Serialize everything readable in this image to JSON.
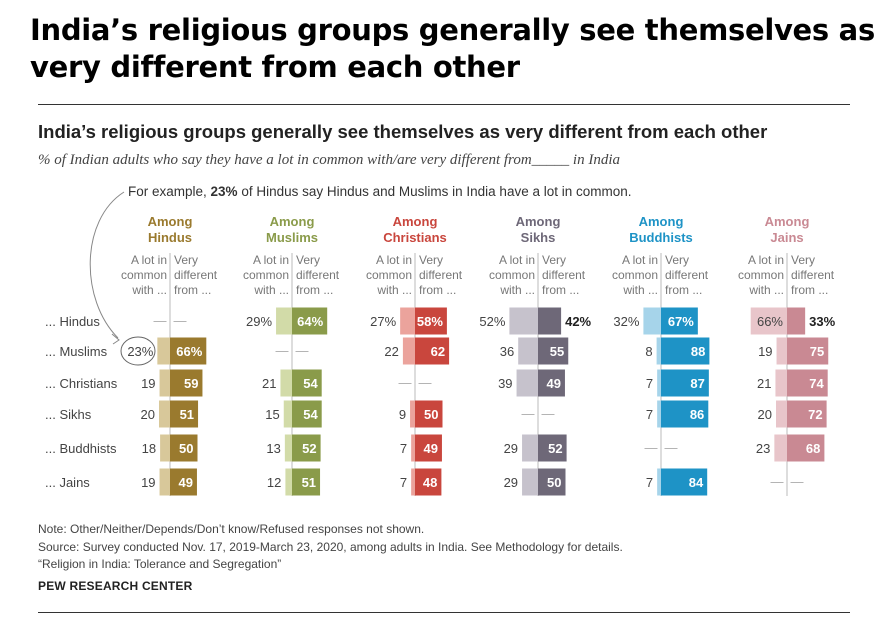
{
  "page_title": "India’s religious groups generally see themselves as very different from each other",
  "chart_title": "India’s religious groups generally see themselves as very different from each other",
  "subtitle": "% of Indian adults who say they have a lot in common with/are very different from_____ in India",
  "example": {
    "before": "For example, ",
    "highlight": "23%",
    "after": " of Hindus say Hindus and Muslims in India have a lot in common."
  },
  "notes": [
    "Note: Other/Neither/Depends/Don’t know/Refused responses not shown.",
    "Source: Survey conducted Nov. 17, 2019-March 23, 2020, among adults in India. See Methodology for details.",
    "“Religion in India: Tolerance and Segregation”"
  ],
  "brand": "PEW RESEARCH CENTER",
  "chart_data": {
    "type": "bar",
    "categories": [
      "... Hindus",
      "... Muslims",
      "... Christians",
      "... Sikhs",
      "... Buddhists",
      "... Jains"
    ],
    "column_headers": [
      "A lot in common with ...",
      "Very different from ..."
    ],
    "groups": [
      {
        "name": "Among Hindus",
        "color": "#9a7a2e",
        "light": "#d8c89a",
        "common": [
          null,
          23,
          19,
          20,
          18,
          19
        ],
        "different": [
          null,
          66,
          59,
          51,
          50,
          49
        ],
        "common_labels": [
          "—",
          "23%",
          "19",
          "20",
          "18",
          "19"
        ],
        "different_labels": [
          "—",
          "66%",
          "59",
          "51",
          "50",
          "49"
        ]
      },
      {
        "name": "Among Muslims",
        "color": "#8a9b4a",
        "light": "#d2dba8",
        "common": [
          29,
          null,
          21,
          15,
          13,
          12
        ],
        "different": [
          64,
          null,
          54,
          54,
          52,
          51
        ],
        "common_labels": [
          "29%",
          "—",
          "21",
          "15",
          "13",
          "12"
        ],
        "different_labels": [
          "64%",
          "—",
          "54",
          "54",
          "52",
          "51"
        ]
      },
      {
        "name": "Among Christians",
        "color": "#c9463d",
        "light": "#eba39c",
        "common": [
          27,
          22,
          null,
          9,
          7,
          7
        ],
        "different": [
          58,
          62,
          null,
          50,
          49,
          48
        ],
        "common_labels": [
          "27%",
          "22",
          "—",
          "9",
          "7",
          "7"
        ],
        "different_labels": [
          "58%",
          "62",
          "—",
          "50",
          "49",
          "48"
        ]
      },
      {
        "name": "Among Sikhs",
        "color": "#6e6878",
        "light": "#c6c2cc",
        "common": [
          52,
          36,
          39,
          null,
          29,
          29
        ],
        "different": [
          42,
          55,
          49,
          null,
          52,
          50
        ],
        "common_labels": [
          "52%",
          "36",
          "39",
          "—",
          "29",
          "29"
        ],
        "different_labels": [
          "42%",
          "55",
          "49",
          "—",
          "52",
          "50"
        ]
      },
      {
        "name": "Among Buddhists",
        "color": "#1e93c6",
        "light": "#a6d4ea",
        "common": [
          32,
          8,
          7,
          7,
          null,
          7
        ],
        "different": [
          67,
          88,
          87,
          86,
          null,
          84
        ],
        "common_labels": [
          "32%",
          "8",
          "7",
          "7",
          "—",
          "7"
        ],
        "different_labels": [
          "67%",
          "88",
          "87",
          "86",
          "—",
          "84"
        ]
      },
      {
        "name": "Among Jains",
        "color": "#c98993",
        "light": "#e8c5ca",
        "common": [
          66,
          19,
          21,
          20,
          23,
          null
        ],
        "different": [
          33,
          75,
          74,
          72,
          68,
          null
        ],
        "common_labels": [
          "66%",
          "19",
          "21",
          "20",
          "23",
          "—"
        ],
        "different_labels": [
          "33%",
          "75",
          "74",
          "72",
          "68",
          "—"
        ]
      }
    ]
  }
}
